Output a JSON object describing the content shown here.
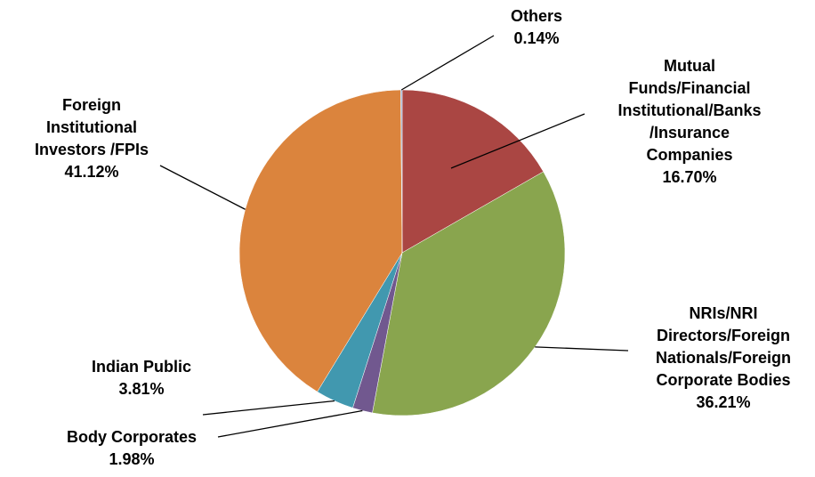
{
  "chart_data": {
    "type": "pie",
    "title": "",
    "start_angle_deg": 0,
    "direction": "clockwise",
    "slices": [
      {
        "name": "Mutual Funds/Financial Institutional/Banks /Insurance Companies",
        "name_lines": [
          "Mutual",
          "Funds/Financial",
          "Institutional/Banks",
          "/Insurance",
          "Companies"
        ],
        "value": 16.7,
        "value_label": "16.70%",
        "color": "#AA4643"
      },
      {
        "name": "NRIs/NRI Directors/Foreign Nationals/Foreign Corporate Bodies",
        "name_lines": [
          "NRIs/NRI",
          "Directors/Foreign",
          "Nationals/Foreign",
          "Corporate Bodies"
        ],
        "value": 36.21,
        "value_label": "36.21%",
        "color": "#89A54E"
      },
      {
        "name": "Body Corporates",
        "name_lines": [
          "Body Corporates"
        ],
        "value": 1.98,
        "value_label": "1.98%",
        "color": "#71588F"
      },
      {
        "name": "Indian Public",
        "name_lines": [
          "Indian Public"
        ],
        "value": 3.81,
        "value_label": "3.81%",
        "color": "#4198AF"
      },
      {
        "name": "Foreign Institutional Investors /FPIs",
        "name_lines": [
          "Foreign",
          "Institutional",
          "Investors /FPIs"
        ],
        "value": 41.12,
        "value_label": "41.12%",
        "color": "#DB843D"
      },
      {
        "name": "Others",
        "name_lines": [
          "Others"
        ],
        "value": 0.14,
        "value_label": "0.14%",
        "color": "#93A9CF"
      }
    ]
  }
}
